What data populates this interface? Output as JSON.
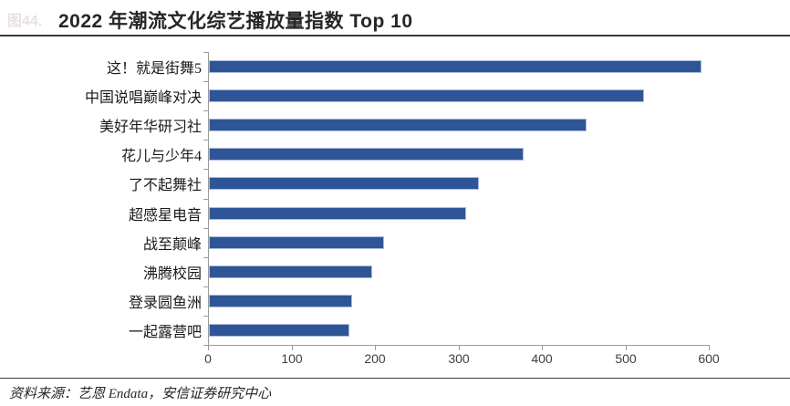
{
  "figure": {
    "faint_label": "图44."
  },
  "chart_data": {
    "type": "bar",
    "orientation": "horizontal",
    "title": "2022 年潮流文化综艺播放量指数 Top 10",
    "categories": [
      "这！就是街舞5",
      "中国说唱巅峰对决",
      "美好年华研习社",
      "花儿与少年4",
      "了不起舞社",
      "超感星电音",
      "战至颠峰",
      "沸腾校园",
      "登录圆鱼洲",
      "一起露营吧"
    ],
    "values": [
      590,
      521,
      452,
      377,
      324,
      308,
      210,
      196,
      172,
      168
    ],
    "xlabel": "",
    "ylabel": "",
    "xlim": [
      0,
      600
    ],
    "x_ticks": [
      0,
      100,
      200,
      300,
      400,
      500,
      600
    ],
    "grid": false,
    "legend_position": "none",
    "bar_color": "#2f5597",
    "bar_border_color": "#a9bcde",
    "axis_color": "#9b9b9b"
  },
  "footer": {
    "source": "资料来源：艺恩 Endata，安信证券研究中心"
  }
}
